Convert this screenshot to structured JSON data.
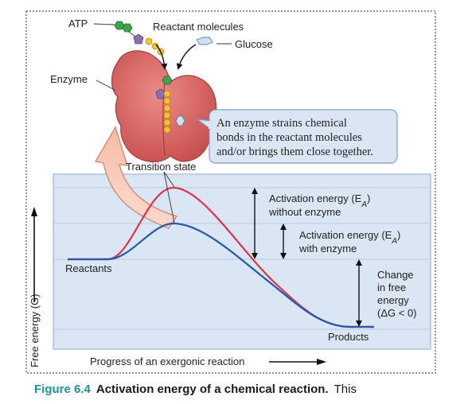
{
  "labels": {
    "atp": "ATP",
    "reactant_molecules": "Reactant molecules",
    "glucose": "Glucose",
    "enzyme": "Enzyme",
    "callout_line1": "An enzyme strains chemical",
    "callout_line2": "bonds in the reactant molecules",
    "callout_line3": "and/or brings them close together.",
    "transition_state": "Transition state",
    "act_without_1": "Activation energy (E",
    "act_without_sub": "A",
    "act_without_2": ")",
    "act_without_3": "without enzyme",
    "act_with_1": "Activation energy (E",
    "act_with_sub": "A",
    "act_with_2": ")",
    "act_with_3": "with enzyme",
    "reactants": "Reactants",
    "products": "Products",
    "change_1": "Change",
    "change_2": "in free",
    "change_3": "energy",
    "change_4": "(ΔG < 0)",
    "y_axis": "Free energy (G)",
    "x_axis": "Progress of an exergonic reaction"
  },
  "caption": {
    "number": "Figure 6.4",
    "title": "Activation energy of a chemical reaction.",
    "rest": "This"
  },
  "colors": {
    "panel_fill": "#dbe6f4",
    "panel_border": "#9fb6d3",
    "curve_without_enzyme": "#e0334a",
    "curve_with_enzyme": "#2359a8",
    "enzyme": "#d9615f",
    "callout_fill": "#dbe6f4",
    "caption_accent": "#1e8f98"
  }
}
